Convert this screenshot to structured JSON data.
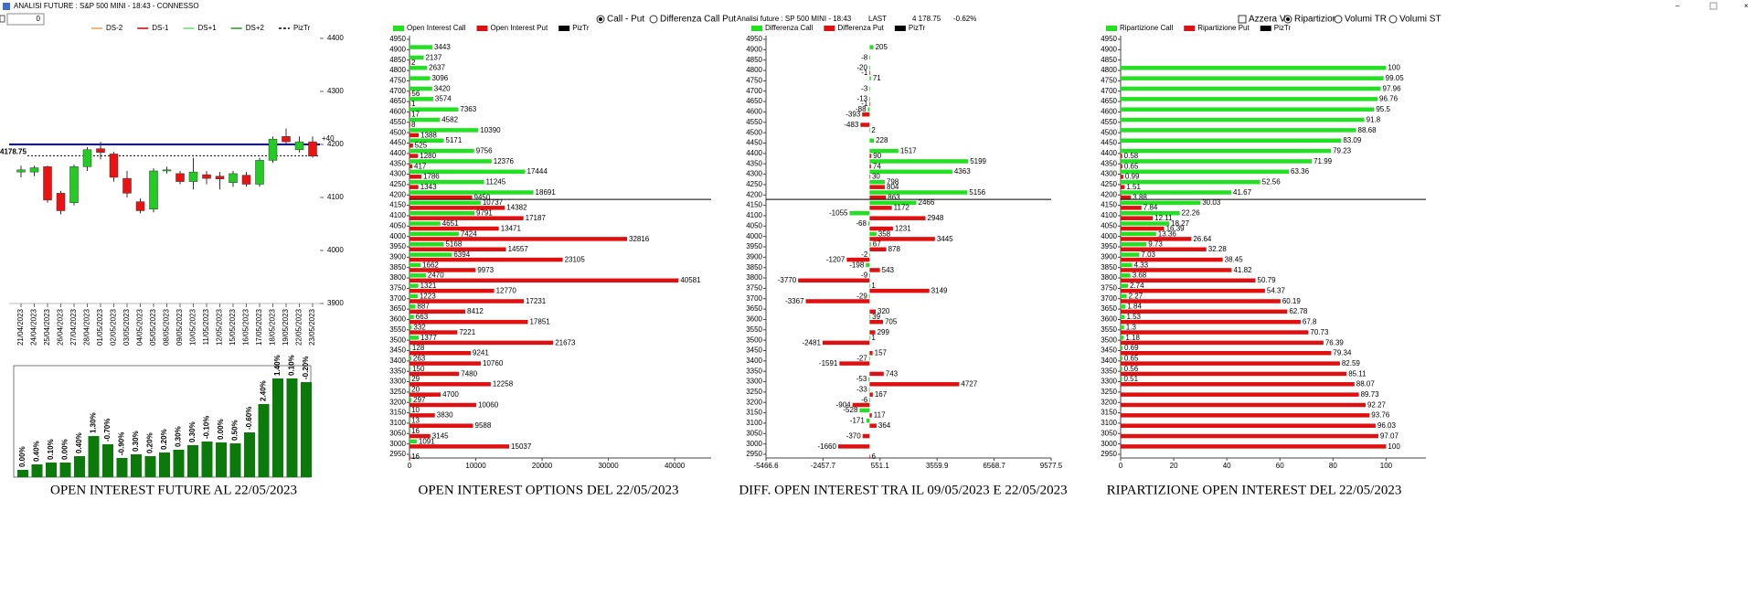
{
  "window_title": "ANALISI FUTURE : S&P 500 MINI - 18:43 - CONNESSO",
  "input_value": 0,
  "last": {
    "label": "LAST",
    "value": 4178.75,
    "value_label": "4 178.75",
    "change": "-0.62%"
  },
  "header": "Analisi future : SP 500 MINI - 18:43",
  "controls": {
    "options": [
      {
        "label": "Call - Put",
        "checked": true
      },
      {
        "label": "Differenza Call Put",
        "checked": false
      }
    ],
    "reset": {
      "label": "Azzera VI.",
      "checked": false
    },
    "mode": [
      {
        "label": "Ripartizione",
        "checked": true
      },
      {
        "label": "Volumi TR",
        "checked": false
      },
      {
        "label": "Volumi ST",
        "checked": false
      }
    ]
  },
  "chart_data": [
    {
      "type": "candlestick",
      "legend": [
        {
          "name": "DS-2",
          "color": "#f0a050"
        },
        {
          "name": "DS-1",
          "color": "#cc0000"
        },
        {
          "name": "DS+1",
          "color": "#66dd66"
        },
        {
          "name": "DS+2",
          "color": "#229922"
        },
        {
          "name": "PizTr",
          "color": "#000000",
          "dash": true
        }
      ],
      "categories": [
        "21/04/2023",
        "24/04/2023",
        "25/04/2023",
        "26/04/2023",
        "27/04/2023",
        "28/04/2023",
        "01/05/2023",
        "02/05/2023",
        "03/05/2023",
        "04/05/2023",
        "05/05/2023",
        "08/05/2023",
        "09/05/2023",
        "10/05/2023",
        "11/05/2023",
        "12/05/2023",
        "15/05/2023",
        "16/05/2023",
        "17/05/2023",
        "18/05/2023",
        "19/05/2023",
        "22/05/2023",
        "23/05/2023"
      ],
      "open": [
        4148,
        4148,
        4158,
        4108,
        4090,
        4158,
        4192,
        4182,
        4136,
        4092,
        4078,
        4150,
        4145,
        4130,
        4143,
        4140,
        4128,
        4142,
        4125,
        4170,
        4215,
        4190,
        4205
      ],
      "high": [
        4160,
        4160,
        4160,
        4112,
        4162,
        4195,
        4205,
        4186,
        4150,
        4098,
        4155,
        4158,
        4150,
        4175,
        4150,
        4148,
        4150,
        4148,
        4175,
        4215,
        4230,
        4215,
        4215
      ],
      "low": [
        4138,
        4140,
        4090,
        4068,
        4085,
        4150,
        4172,
        4130,
        4100,
        4070,
        4072,
        4145,
        4125,
        4115,
        4125,
        4115,
        4120,
        4120,
        4120,
        4165,
        4200,
        4185,
        4175
      ],
      "close": [
        4152,
        4156,
        4095,
        4075,
        4158,
        4190,
        4185,
        4138,
        4108,
        4075,
        4150,
        4152,
        4130,
        4148,
        4136,
        4135,
        4145,
        4125,
        4170,
        4210,
        4205,
        4205,
        4178
      ],
      "up_color": "#22cc22",
      "down_color": "#ee1111",
      "hline": 4200,
      "hline_color": "#0000cc",
      "annotation": "+40",
      "ylim": [
        3900,
        4400
      ],
      "yticks": [
        3900,
        4000,
        4100,
        4200,
        4300,
        4400
      ]
    },
    {
      "type": "bar",
      "title": "OPEN INTEREST FUTURE AL 22/05/2023",
      "color": "#0b7a0b",
      "values": [
        8,
        14,
        16,
        16,
        23,
        45,
        36,
        21,
        25,
        23,
        27,
        30,
        35,
        39,
        38,
        37,
        49,
        80,
        108,
        108,
        104
      ],
      "value_labels": [
        "0.00%",
        "0.40%",
        "0.10%",
        "0.00%",
        "0.40%",
        "1.30%",
        "-0.70%",
        "-0.90%",
        "0.30%",
        "0.20%",
        "0.20%",
        "0.30%",
        "0.30%",
        "-0.10%",
        "0.00%",
        "0.50%",
        "-0.60%",
        "2.40%",
        "1.40%",
        "0.10%",
        "-0.20%"
      ],
      "ylim": [
        0,
        122
      ]
    },
    {
      "type": "hbar",
      "title": "OPEN INTEREST OPTIONS DEL 22/05/2023",
      "categories": [
        "4950",
        "4900",
        "4850",
        "4800",
        "4750",
        "4700",
        "4650",
        "4600",
        "4550",
        "4500",
        "4450",
        "4400",
        "4350",
        "4300",
        "4250",
        "4200",
        "4150",
        "4100",
        "4050",
        "4000",
        "3950",
        "3900",
        "3850",
        "3800",
        "3750",
        "3700",
        "3650",
        "3600",
        "3550",
        "3500",
        "3450",
        "3400",
        "3350",
        "3300",
        "3250",
        "3200",
        "3150",
        "3100",
        "3050",
        "3000",
        "2950"
      ],
      "series": [
        {
          "name": "Open Interest Call",
          "color": "#22e022",
          "values": [
            null,
            3443,
            2137,
            2637,
            3096,
            3420,
            3574,
            7363,
            4582,
            10390,
            5171,
            9756,
            12376,
            17444,
            11245,
            18691,
            10737,
            9791,
            4651,
            7424,
            5168,
            6394,
            1662,
            2470,
            1321,
            1223,
            887,
            663,
            332,
            1377,
            128,
            263,
            150,
            29,
            20,
            297,
            10,
            13,
            16,
            1091,
            null
          ]
        },
        {
          "name": "Open Interest Put",
          "color": "#e01010",
          "values": [
            null,
            null,
            2,
            null,
            null,
            56,
            1,
            17,
            8,
            1388,
            525,
            1280,
            417,
            1786,
            1343,
            9450,
            14382,
            17187,
            13471,
            32816,
            14557,
            23105,
            9973,
            40581,
            12770,
            17231,
            8412,
            17851,
            7221,
            21673,
            9241,
            10760,
            7480,
            12258,
            4700,
            10060,
            3830,
            9588,
            3145,
            15037,
            16
          ]
        }
      ],
      "legend_extra": [
        {
          "name": "PizTr",
          "color": "#000000"
        }
      ],
      "xlim": [
        0,
        45500
      ],
      "xticks": [
        0,
        10000,
        20000,
        30000,
        40000
      ]
    },
    {
      "type": "hbar",
      "title": "DIFF. OPEN INTEREST TRA IL 09/05/2023 E 22/05/2023",
      "categories": [
        "4950",
        "4900",
        "4850",
        "4800",
        "4750",
        "4700",
        "4650",
        "4600",
        "4550",
        "4500",
        "4450",
        "4400",
        "4350",
        "4300",
        "4250",
        "4200",
        "4150",
        "4100",
        "4050",
        "4000",
        "3950",
        "3900",
        "3850",
        "3800",
        "3750",
        "3700",
        "3650",
        "3600",
        "3550",
        "3500",
        "3450",
        "3400",
        "3350",
        "3300",
        "3250",
        "3200",
        "3150",
        "3100",
        "3050",
        "3000",
        "2950"
      ],
      "series": [
        {
          "name": "Differenza Call",
          "color": "#22e022",
          "values": [
            null,
            205,
            -8,
            -20,
            71,
            -3,
            -13,
            -88,
            null,
            2,
            228,
            1517,
            5199,
            4363,
            798,
            5156,
            2466,
            -1055,
            -68,
            358,
            67,
            -2,
            -198,
            -9,
            1,
            -29,
            null,
            39,
            null,
            1,
            null,
            -27,
            null,
            -53,
            -33,
            -6,
            -528,
            -171,
            null,
            null,
            null
          ]
        },
        {
          "name": "Differenza Put",
          "color": "#e01010",
          "values": [
            null,
            null,
            null,
            -1,
            null,
            null,
            -1,
            -393,
            -483,
            null,
            null,
            90,
            74,
            30,
            804,
            863,
            1172,
            2948,
            1231,
            3445,
            878,
            -1207,
            543,
            -3770,
            3149,
            -3367,
            320,
            705,
            299,
            -2481,
            157,
            -1591,
            743,
            4727,
            167,
            -904,
            117,
            364,
            -370,
            -1660,
            6
          ]
        }
      ],
      "legend_extra": [
        {
          "name": "PizTr",
          "color": "#000000"
        }
      ],
      "xlim": [
        -5466.6,
        9577.5
      ],
      "xticks": [
        -5466.6,
        -2457.7,
        551.1,
        3559.9,
        6568.7,
        9577.5
      ]
    },
    {
      "type": "hbar",
      "title": "RIPARTIZIONE OPEN INTEREST DEL 22/05/2023",
      "categories": [
        "4950",
        "4900",
        "4850",
        "4800",
        "4750",
        "4700",
        "4650",
        "4600",
        "4550",
        "4500",
        "4450",
        "4400",
        "4350",
        "4300",
        "4250",
        "4200",
        "4150",
        "4100",
        "4050",
        "4000",
        "3950",
        "3900",
        "3850",
        "3800",
        "3750",
        "3700",
        "3650",
        "3600",
        "3550",
        "3500",
        "3450",
        "3400",
        "3350",
        "3300",
        "3250",
        "3200",
        "3150",
        "3100",
        "3050",
        "3000",
        "2950"
      ],
      "series": [
        {
          "name": "Ripartizione Call",
          "color": "#22e022",
          "values": [
            null,
            null,
            null,
            100,
            99.05,
            97.96,
            96.76,
            95.5,
            91.8,
            88.68,
            83.09,
            79.23,
            71.99,
            63.36,
            52.56,
            41.67,
            30.03,
            22.26,
            18.27,
            13.36,
            9.73,
            7.03,
            4.33,
            3.68,
            2.74,
            2.27,
            1.84,
            1.53,
            1.3,
            1.18,
            0.69,
            0.65,
            0.56,
            0.51,
            null,
            null,
            null,
            null,
            null,
            null,
            null
          ]
        },
        {
          "name": "Ripartizione Put",
          "color": "#e01010",
          "values": [
            null,
            null,
            null,
            null,
            null,
            null,
            null,
            null,
            null,
            null,
            null,
            0.58,
            0.65,
            0.99,
            1.51,
            3.88,
            7.84,
            12.11,
            16.39,
            26.64,
            32.28,
            38.45,
            41.82,
            50.79,
            54.37,
            60.19,
            62.78,
            67.8,
            70.73,
            76.39,
            79.34,
            82.59,
            85.11,
            88.07,
            89.73,
            92.27,
            93.76,
            96.03,
            97.07,
            100,
            null
          ]
        }
      ],
      "legend_extra": [
        {
          "name": "PizTr",
          "color": "#000000"
        }
      ],
      "xlim": [
        0,
        115
      ],
      "xticks": [
        0,
        20,
        40,
        60,
        80,
        100
      ]
    }
  ]
}
